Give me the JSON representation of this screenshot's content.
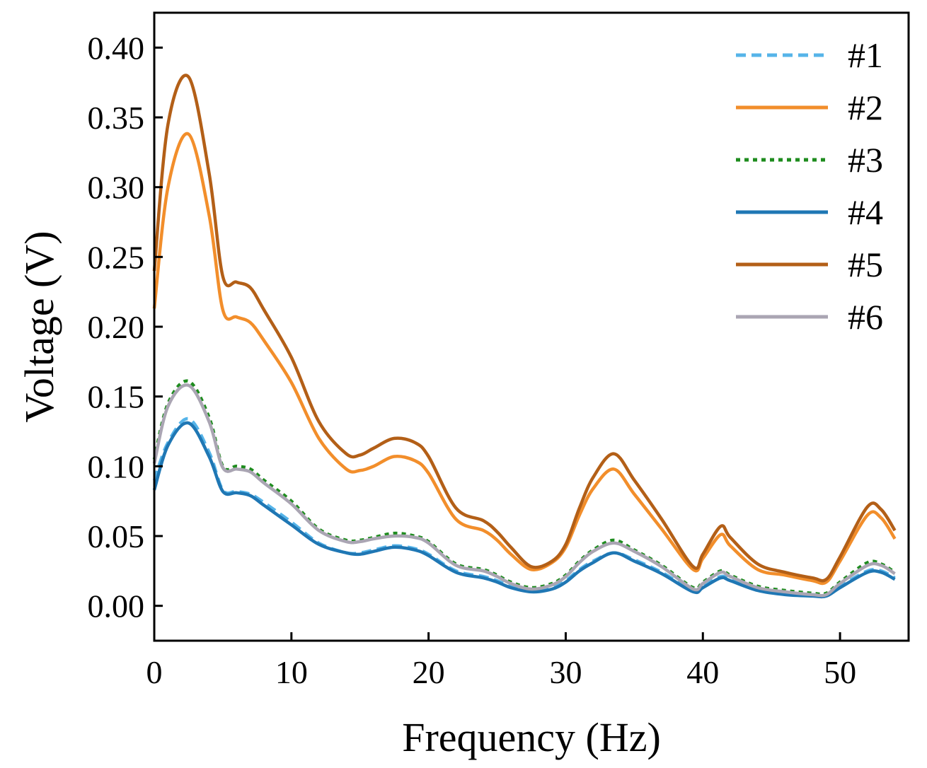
{
  "chart_data": {
    "type": "line",
    "title": "",
    "xlabel": "Frequency (Hz)",
    "ylabel": "Voltage (V)",
    "xlim": [
      0,
      55
    ],
    "ylim": [
      -0.025,
      0.425
    ],
    "xticks": [
      0,
      10,
      20,
      30,
      40,
      50
    ],
    "xtick_labels": [
      "0",
      "10",
      "20",
      "30",
      "40",
      "50"
    ],
    "yticks": [
      0.0,
      0.05,
      0.1,
      0.15,
      0.2,
      0.25,
      0.3,
      0.35,
      0.4
    ],
    "ytick_labels": [
      "0.00",
      "0.05",
      "0.10",
      "0.15",
      "0.20",
      "0.25",
      "0.30",
      "0.35",
      "0.40"
    ],
    "grid": false,
    "legend_position": "top-right",
    "x": [
      0,
      1,
      2.5,
      4,
      5,
      6,
      7,
      8,
      10,
      12,
      14,
      15,
      16,
      17.5,
      19,
      20,
      22,
      24,
      25,
      26,
      27.5,
      29,
      30,
      31,
      32,
      33.5,
      35,
      37,
      39.3,
      40,
      41.3,
      42,
      44,
      46,
      48,
      49,
      50,
      52,
      53,
      54
    ],
    "series": [
      {
        "name": "#1",
        "color": "#56B4E9",
        "dash": "dashed",
        "values": [
          0.09,
          0.117,
          0.134,
          0.11,
          0.083,
          0.082,
          0.08,
          0.074,
          0.06,
          0.045,
          0.038,
          0.038,
          0.04,
          0.043,
          0.041,
          0.037,
          0.025,
          0.021,
          0.018,
          0.014,
          0.011,
          0.013,
          0.018,
          0.026,
          0.032,
          0.038,
          0.033,
          0.024,
          0.011,
          0.014,
          0.021,
          0.019,
          0.012,
          0.009,
          0.008,
          0.008,
          0.014,
          0.025,
          0.025,
          0.02
        ]
      },
      {
        "name": "#2",
        "color": "#F28E2B",
        "dash": "solid",
        "values": [
          0.213,
          0.3,
          0.338,
          0.28,
          0.212,
          0.207,
          0.203,
          0.19,
          0.16,
          0.12,
          0.098,
          0.097,
          0.1,
          0.107,
          0.104,
          0.095,
          0.062,
          0.054,
          0.047,
          0.037,
          0.026,
          0.031,
          0.042,
          0.065,
          0.084,
          0.098,
          0.08,
          0.055,
          0.026,
          0.034,
          0.051,
          0.043,
          0.026,
          0.022,
          0.018,
          0.017,
          0.032,
          0.065,
          0.063,
          0.048
        ]
      },
      {
        "name": "#3",
        "color": "#1E8C1E",
        "dash": "dotted",
        "values": [
          0.105,
          0.145,
          0.161,
          0.135,
          0.1,
          0.1,
          0.098,
          0.09,
          0.075,
          0.055,
          0.047,
          0.047,
          0.049,
          0.052,
          0.05,
          0.046,
          0.03,
          0.026,
          0.022,
          0.017,
          0.013,
          0.016,
          0.022,
          0.032,
          0.04,
          0.047,
          0.04,
          0.029,
          0.013,
          0.017,
          0.025,
          0.022,
          0.014,
          0.011,
          0.009,
          0.009,
          0.017,
          0.031,
          0.03,
          0.024
        ]
      },
      {
        "name": "#4",
        "color": "#1F77B4",
        "dash": "solid",
        "values": [
          0.083,
          0.115,
          0.131,
          0.107,
          0.082,
          0.081,
          0.079,
          0.072,
          0.058,
          0.044,
          0.038,
          0.037,
          0.039,
          0.042,
          0.04,
          0.036,
          0.024,
          0.02,
          0.017,
          0.013,
          0.01,
          0.012,
          0.017,
          0.025,
          0.031,
          0.038,
          0.032,
          0.023,
          0.01,
          0.013,
          0.02,
          0.018,
          0.011,
          0.008,
          0.007,
          0.007,
          0.013,
          0.024,
          0.024,
          0.019
        ]
      },
      {
        "name": "#5",
        "color": "#B35F17",
        "dash": "solid",
        "values": [
          0.24,
          0.345,
          0.379,
          0.31,
          0.236,
          0.232,
          0.228,
          0.212,
          0.178,
          0.132,
          0.109,
          0.108,
          0.113,
          0.12,
          0.117,
          0.107,
          0.07,
          0.061,
          0.053,
          0.042,
          0.028,
          0.032,
          0.044,
          0.07,
          0.092,
          0.109,
          0.09,
          0.062,
          0.028,
          0.037,
          0.057,
          0.049,
          0.03,
          0.024,
          0.02,
          0.019,
          0.035,
          0.071,
          0.069,
          0.054
        ]
      },
      {
        "name": "#6",
        "color": "#AAA5B3",
        "dash": "solid",
        "values": [
          0.102,
          0.143,
          0.158,
          0.132,
          0.099,
          0.098,
          0.096,
          0.088,
          0.073,
          0.054,
          0.046,
          0.046,
          0.048,
          0.05,
          0.049,
          0.045,
          0.029,
          0.025,
          0.021,
          0.016,
          0.012,
          0.015,
          0.021,
          0.031,
          0.039,
          0.045,
          0.039,
          0.028,
          0.012,
          0.016,
          0.024,
          0.021,
          0.013,
          0.01,
          0.008,
          0.008,
          0.016,
          0.029,
          0.029,
          0.023
        ]
      }
    ]
  }
}
